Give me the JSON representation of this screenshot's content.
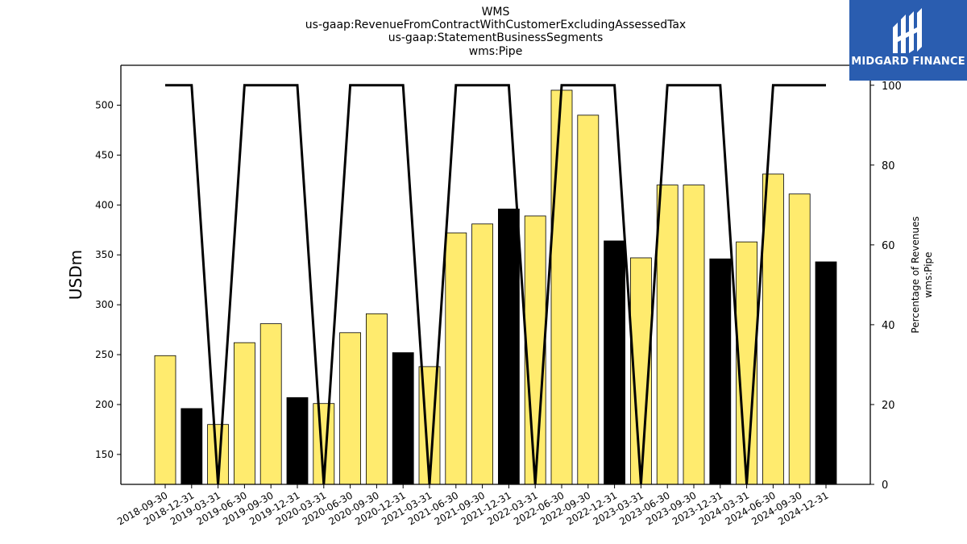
{
  "title_lines": [
    "WMS",
    "us-gaap:RevenueFromContractWithCustomerExcludingAssessedTax",
    "us-gaap:StatementBusinessSegments",
    "wms:Pipe"
  ],
  "logo": {
    "text": "MIDGARD FINANCE",
    "background": "#2a5db0"
  },
  "chart_data": {
    "type": "bar",
    "ylabel": "USDm",
    "y2label_lines": [
      "Percentage of Revenues",
      "wms:Pipe"
    ],
    "ylim": [
      120,
      540
    ],
    "y2lim": [
      0,
      105
    ],
    "yticks": [
      150,
      200,
      250,
      300,
      350,
      400,
      450,
      500
    ],
    "y2ticks": [
      0,
      20,
      40,
      60,
      80,
      100
    ],
    "colors": {
      "bar_default": "#ffeb6e",
      "bar_highlight": "#000000",
      "line": "#000000"
    },
    "categories": [
      "2018-09-30",
      "2018-12-31",
      "2019-03-31",
      "2019-06-30",
      "2019-09-30",
      "2019-12-31",
      "2020-03-31",
      "2020-06-30",
      "2020-09-30",
      "2020-12-31",
      "2021-03-31",
      "2021-06-30",
      "2021-09-30",
      "2021-12-31",
      "2022-03-31",
      "2022-06-30",
      "2022-09-30",
      "2022-12-31",
      "2023-03-31",
      "2023-06-30",
      "2023-09-30",
      "2023-12-31",
      "2024-03-31",
      "2024-06-30",
      "2024-09-30",
      "2024-12-31"
    ],
    "series": [
      {
        "type": "bar",
        "values": [
          249,
          196,
          180,
          262,
          281,
          207,
          201,
          272,
          291,
          252,
          238,
          372,
          381,
          396,
          389,
          515,
          490,
          364,
          347,
          420,
          420,
          346,
          363,
          431,
          411,
          343
        ],
        "highlight": [
          false,
          true,
          false,
          false,
          false,
          true,
          false,
          false,
          false,
          true,
          false,
          false,
          false,
          true,
          false,
          false,
          false,
          true,
          false,
          false,
          false,
          true,
          false,
          false,
          false,
          true
        ]
      },
      {
        "type": "line",
        "axis": "right",
        "values": [
          100,
          100,
          0,
          100,
          100,
          100,
          0,
          100,
          100,
          100,
          0,
          100,
          100,
          100,
          0,
          100,
          100,
          100,
          0,
          100,
          100,
          100,
          0,
          100,
          100,
          100
        ]
      }
    ]
  }
}
